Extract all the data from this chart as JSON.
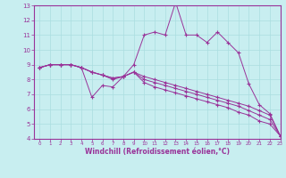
{
  "xlabel": "Windchill (Refroidissement éolien,°C)",
  "bg_color": "#c8eef0",
  "line_color": "#993399",
  "grid_color": "#aadde0",
  "lines": [
    [
      8.8,
      9.0,
      9.0,
      9.0,
      8.8,
      6.8,
      7.6,
      7.5,
      8.2,
      9.0,
      11.0,
      11.2,
      11.0,
      13.2,
      11.0,
      11.0,
      10.5,
      11.2,
      10.5,
      9.8,
      7.7,
      6.3,
      5.7,
      4.2
    ],
    [
      8.8,
      9.0,
      9.0,
      9.0,
      8.8,
      8.5,
      8.3,
      8.0,
      8.2,
      8.5,
      8.2,
      8.0,
      7.8,
      7.6,
      7.4,
      7.2,
      7.0,
      6.8,
      6.6,
      6.4,
      6.2,
      5.9,
      5.6,
      4.2
    ],
    [
      8.8,
      9.0,
      9.0,
      9.0,
      8.8,
      8.5,
      8.3,
      8.1,
      8.2,
      8.5,
      8.0,
      7.8,
      7.6,
      7.4,
      7.2,
      7.0,
      6.8,
      6.6,
      6.4,
      6.2,
      5.9,
      5.6,
      5.3,
      4.2
    ],
    [
      8.8,
      9.0,
      9.0,
      9.0,
      8.8,
      8.5,
      8.3,
      8.1,
      8.2,
      8.5,
      7.8,
      7.5,
      7.3,
      7.1,
      6.9,
      6.7,
      6.5,
      6.3,
      6.1,
      5.8,
      5.6,
      5.2,
      5.0,
      4.2
    ]
  ],
  "xlim": [
    -0.5,
    23
  ],
  "ylim": [
    4,
    13
  ],
  "xticks": [
    0,
    1,
    2,
    3,
    4,
    5,
    6,
    7,
    8,
    9,
    10,
    11,
    12,
    13,
    14,
    15,
    16,
    17,
    18,
    19,
    20,
    21,
    22,
    23
  ],
  "yticks": [
    4,
    5,
    6,
    7,
    8,
    9,
    10,
    11,
    12,
    13
  ]
}
